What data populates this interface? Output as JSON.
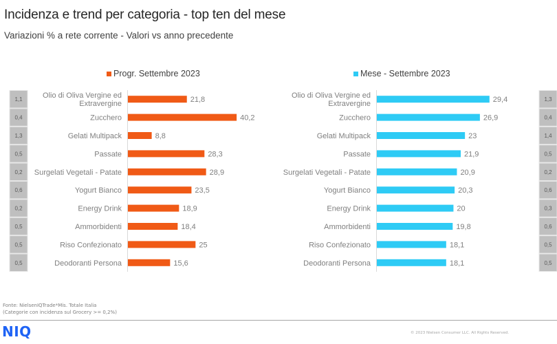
{
  "header": {
    "title": "Incidenza e trend per categoria - top ten del mese",
    "subtitle": "Variazioni  % a rete corrente - Valori vs anno precedente"
  },
  "chart_data": [
    {
      "type": "bar",
      "orientation": "horizontal",
      "legend": "Progr. Settembre 2023",
      "legend_placement": "top",
      "color": "#f05a16",
      "categories": [
        [
          "Olio di Oliva Vergine ed",
          "Extravergine"
        ],
        [
          "Zucchero"
        ],
        [
          "Gelati Multipack"
        ],
        [
          "Passate"
        ],
        [
          "Surgelati Vegetali - Patate"
        ],
        [
          "Yogurt Bianco"
        ],
        [
          "Energy Drink"
        ],
        [
          "Ammorbidenti"
        ],
        [
          "Riso Confezionato"
        ],
        [
          "Deodoranti Persona"
        ]
      ],
      "values": [
        21.8,
        40.2,
        8.8,
        28.3,
        28.9,
        23.5,
        18.9,
        18.4,
        25,
        15.6
      ],
      "value_labels": [
        "21,8",
        "40,2",
        "8,8",
        "28,3",
        "28,9",
        "23,5",
        "18,9",
        "18,4",
        "25",
        "15,6"
      ],
      "incidence": [
        "1,1",
        "0,4",
        "1,3",
        "0,5",
        "0,2",
        "0,6",
        "0,2",
        "0,5",
        "0,5",
        "0,5"
      ],
      "xlim": [
        0,
        45
      ]
    },
    {
      "type": "bar",
      "orientation": "horizontal",
      "legend": "Mese - Settembre 2023",
      "legend_placement": "top",
      "color": "#2ecbf5",
      "categories": [
        [
          "Olio di Oliva Vergine ed",
          "Extravergine"
        ],
        [
          "Zucchero"
        ],
        [
          "Gelati Multipack"
        ],
        [
          "Passate"
        ],
        [
          "Surgelati Vegetali - Patate"
        ],
        [
          "Yogurt Bianco"
        ],
        [
          "Energy Drink"
        ],
        [
          "Ammorbidenti"
        ],
        [
          "Riso Confezionato"
        ],
        [
          "Deodoranti Persona"
        ]
      ],
      "values": [
        29.4,
        26.9,
        23,
        21.9,
        20.9,
        20.3,
        20,
        19.8,
        18.1,
        18.1
      ],
      "value_labels": [
        "29,4",
        "26,9",
        "23",
        "21,9",
        "20,9",
        "20,3",
        "20",
        "19,8",
        "18,1",
        "18,1"
      ],
      "incidence": [
        "1,3",
        "0,4",
        "1,4",
        "0,5",
        "0,2",
        "0,6",
        "0,3",
        "0,6",
        "0,5",
        "0,5"
      ],
      "xlim": [
        0,
        35
      ]
    }
  ],
  "footer": {
    "source_line1": "Fonte: NielsenIQTrade*Mis. Totale Italia",
    "source_line2": "(Categorie con incidenza sul Grocery >= 0,2%)",
    "logo": "NIQ",
    "copyright": "© 2023 Nielsen Consumer LLC. All Rights Reserved."
  }
}
